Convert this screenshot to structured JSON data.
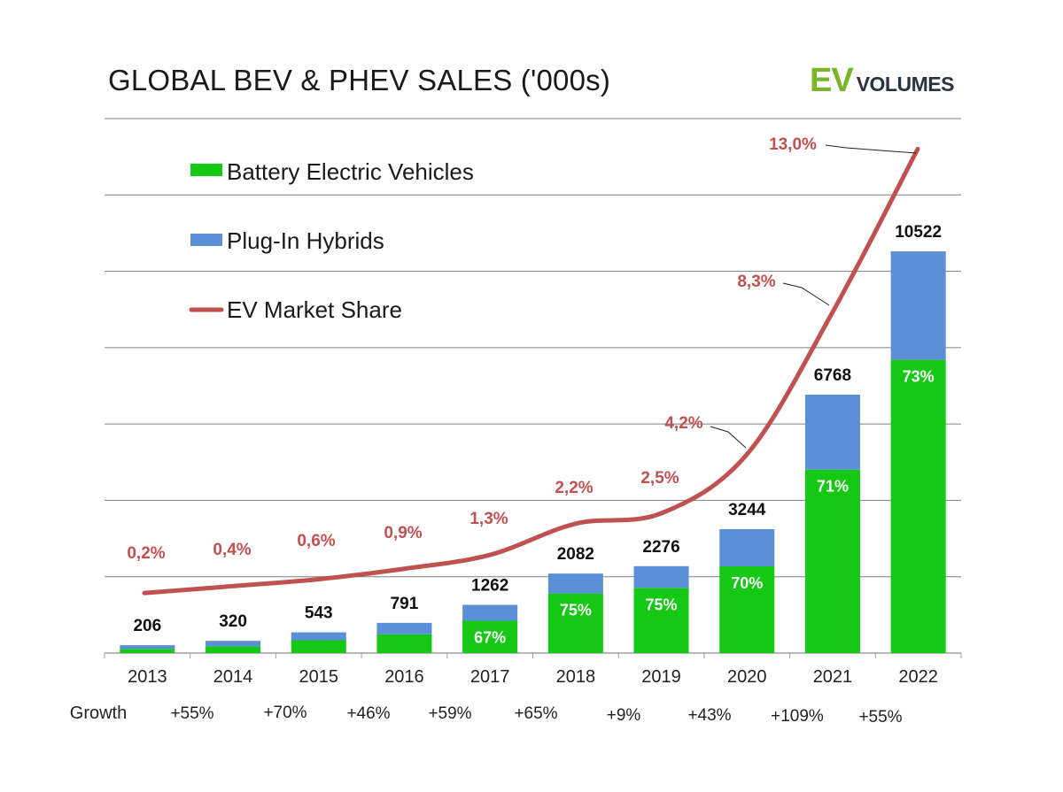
{
  "title": "GLOBAL BEV & PHEV SALES ('000s)",
  "logo": {
    "ev": "EV",
    "volumes": "VOLUMES",
    "ev_color": "#79b62a"
  },
  "colors": {
    "bev": "#14c814",
    "phev": "#5b8fd6",
    "share": "#bf5151",
    "grid": "#7f7f7f",
    "axis": "#a0a0a0"
  },
  "chart_data": {
    "type": "bar",
    "stacked": true,
    "title": "GLOBAL BEV & PHEV SALES ('000s)",
    "categories": [
      "2013",
      "2014",
      "2015",
      "2016",
      "2017",
      "2018",
      "2019",
      "2020",
      "2021",
      "2022"
    ],
    "ylim": [
      0,
      14000
    ],
    "grid": true,
    "legend_position": "top-left",
    "series": [
      {
        "name": "Battery Electric Vehicles",
        "values": [
          110,
          176,
          336,
          491,
          846,
          1562,
          1707,
          2271,
          4805,
          7681
        ]
      },
      {
        "name": "Plug-In Hybrids",
        "values": [
          96,
          144,
          207,
          300,
          416,
          520,
          569,
          973,
          1963,
          2841
        ]
      }
    ],
    "totals": [
      206,
      320,
      543,
      791,
      1262,
      2082,
      2276,
      3244,
      6768,
      10522
    ],
    "bev_share_labels": [
      "",
      "",
      "",
      "",
      "67%",
      "75%",
      "75%",
      "70%",
      "71%",
      "73%"
    ],
    "line_series": {
      "name": "EV Market Share",
      "values": [
        0.2,
        0.4,
        0.6,
        0.9,
        1.3,
        2.2,
        2.5,
        4.2,
        8.3,
        13.0
      ],
      "labels": [
        "0,2%",
        "0,4%",
        "0,6%",
        "0,9%",
        "1,3%",
        "2,2%",
        "2,5%",
        "4,2%",
        "8,3%",
        "13,0%"
      ]
    },
    "growth_label": "Growth",
    "growth": [
      "+55%",
      "+70%",
      "+46%",
      "+59%",
      "+65%",
      "+9%",
      "+43%",
      "+109%",
      "+55%"
    ]
  }
}
